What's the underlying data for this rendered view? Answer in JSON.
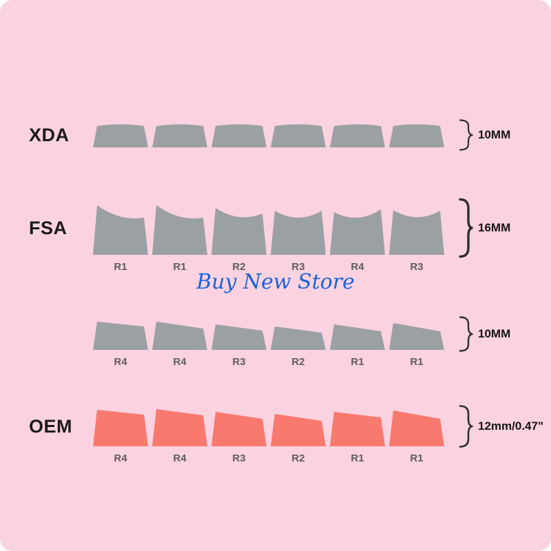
{
  "watermark": {
    "text": "Buy New Store",
    "color": "#1a63d9"
  },
  "colors": {
    "background": "#fbd2e0",
    "gray_key": "#9ba0a4",
    "red_key": "#f8796e",
    "row_name_text": "#1b1b1b",
    "measurement_text": "#141414",
    "position_label_text": "#5d5d5d",
    "brace": "#2e2e2e"
  },
  "rows": [
    {
      "name": "XDA",
      "measurement": "10MM",
      "key_color": "#9ba0a4",
      "key_count": 6,
      "labels": []
    },
    {
      "name": "FSA",
      "measurement": "16MM",
      "key_color": "#9ba0a4",
      "key_count": 6,
      "labels": [
        "R1",
        "R1",
        "R2",
        "R3",
        "R4",
        "R3"
      ]
    },
    {
      "name": "",
      "measurement": "10MM",
      "key_color": "#9ba0a4",
      "key_count": 6,
      "labels": [
        "R4",
        "R4",
        "R3",
        "R2",
        "R1",
        "R1"
      ]
    },
    {
      "name": "OEM",
      "measurement": "12mm/0.47\"",
      "key_color": "#f8796e",
      "key_count": 6,
      "labels": [
        "R4",
        "R4",
        "R3",
        "R2",
        "R1",
        "R1"
      ]
    }
  ]
}
